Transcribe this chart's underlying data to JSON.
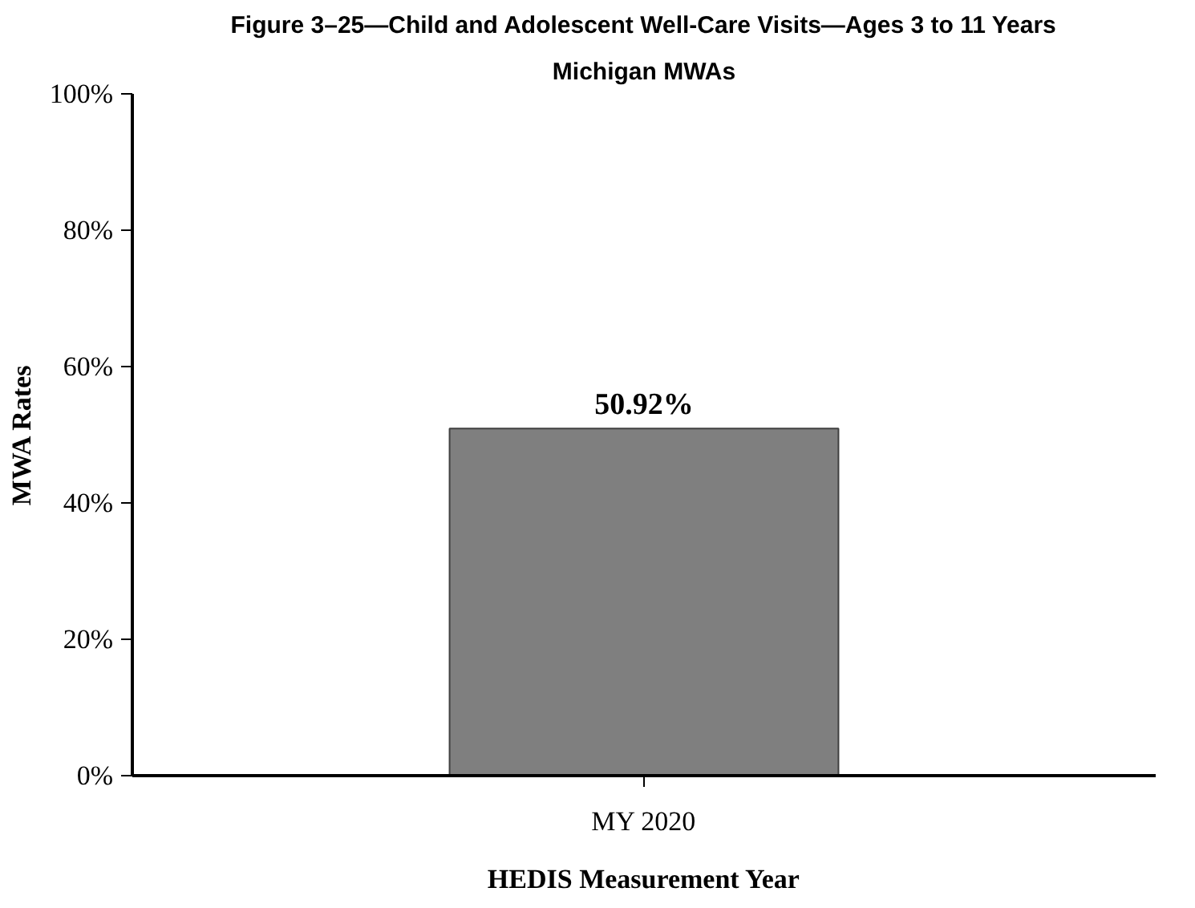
{
  "chart_data": {
    "type": "bar",
    "title": "Figure 3–25—Child and Adolescent Well-Care Visits—Ages 3 to 11 Years",
    "subtitle": "Michigan MWAs",
    "xlabel": "HEDIS Measurement Year",
    "ylabel": "MWA Rates",
    "categories": [
      "MY 2020"
    ],
    "values": [
      50.92
    ],
    "value_labels": [
      "50.92%"
    ],
    "color": "#7f7f7f",
    "ylim": [
      0,
      100
    ],
    "yticks": [
      {
        "value": 0,
        "label": "0%"
      },
      {
        "value": 20,
        "label": "20%"
      },
      {
        "value": 40,
        "label": "40%"
      },
      {
        "value": 60,
        "label": "60%"
      },
      {
        "value": 80,
        "label": "80%"
      },
      {
        "value": 100,
        "label": "100%"
      }
    ],
    "grid": false
  }
}
